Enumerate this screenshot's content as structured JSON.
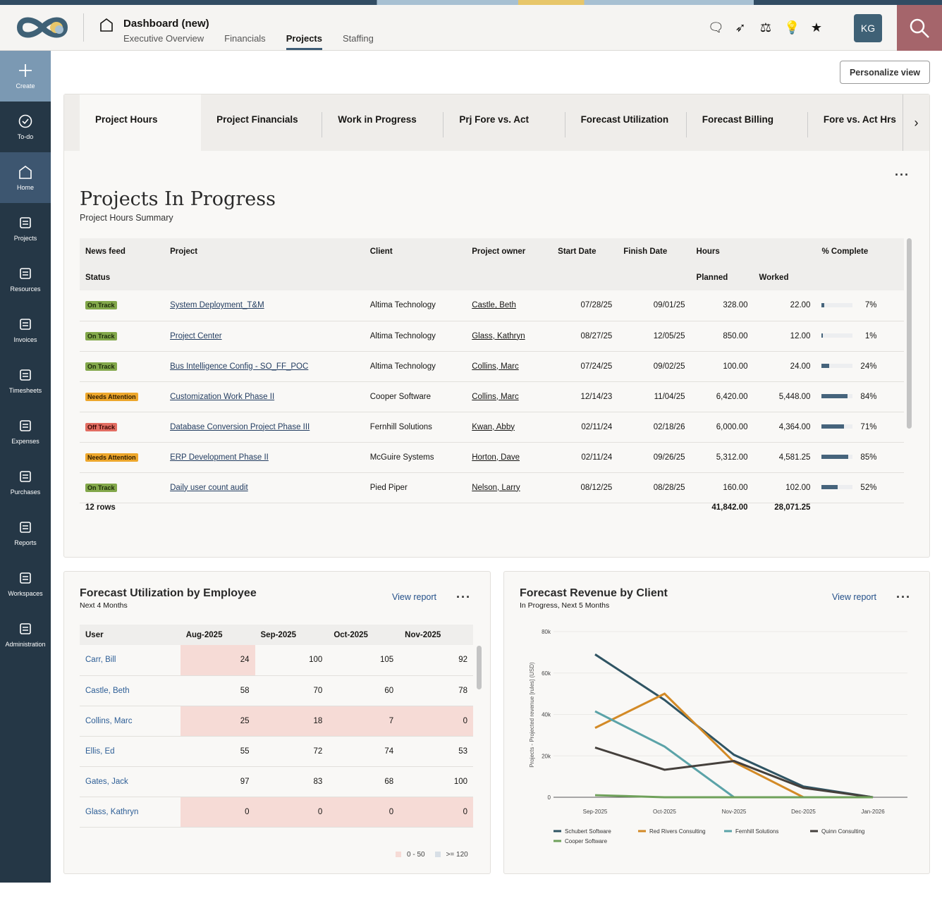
{
  "header": {
    "title": "Dashboard (new)",
    "tabs": [
      "Executive Overview",
      "Financials",
      "Projects",
      "Staffing"
    ],
    "active_tab": "Projects",
    "avatar": "KG",
    "icons": [
      "chat-icon",
      "rocket-icon",
      "scale-icon",
      "lightbulb-icon",
      "star-icon"
    ]
  },
  "sidebar": {
    "items": [
      "Create",
      "To-do",
      "Home",
      "Projects",
      "Resources",
      "Invoices",
      "Timesheets",
      "Expenses",
      "Purchases",
      "Reports",
      "Workspaces",
      "Administration"
    ]
  },
  "personalize_label": "Personalize view",
  "tabs": [
    "Project Hours",
    "Project Financials",
    "Work in Progress",
    "Prj Fore vs. Act",
    "Forecast Utilization",
    "Forecast Billing",
    "Fore vs. Act Hrs"
  ],
  "main": {
    "title": "Projects In Progress",
    "subtitle": "Project Hours Summary",
    "headers": {
      "news": "News feed",
      "status": "Status",
      "project": "Project",
      "client": "Client",
      "owner": "Project owner",
      "start": "Start Date",
      "finish": "Finish Date",
      "hours": "Hours",
      "planned": "Planned",
      "worked": "Worked",
      "pct": "% Complete"
    },
    "rows": [
      {
        "status": "On Track",
        "project": "System Deployment_T&M",
        "client": "Altima Technology",
        "owner": "Castle, Beth",
        "start": "07/28/25",
        "finish": "09/01/25",
        "planned": "328.00",
        "worked": "22.00",
        "pct": 7
      },
      {
        "status": "On Track",
        "project": "Project Center",
        "client": "Altima Technology",
        "owner": "Glass, Kathryn",
        "start": "08/27/25",
        "finish": "12/05/25",
        "planned": "850.00",
        "worked": "12.00",
        "pct": 1
      },
      {
        "status": "On Track",
        "project": "Bus Intelligence Config - SO_FF_POC",
        "client": "Altima Technology",
        "owner": "Collins, Marc",
        "start": "07/24/25",
        "finish": "09/02/25",
        "planned": "100.00",
        "worked": "24.00",
        "pct": 24
      },
      {
        "status": "Needs Attention",
        "project": "Customization Work Phase II",
        "client": "Cooper Software",
        "owner": "Collins, Marc",
        "start": "12/14/23",
        "finish": "11/04/25",
        "planned": "6,420.00",
        "worked": "5,448.00",
        "pct": 84
      },
      {
        "status": "Off Track",
        "project": "Database Conversion Project Phase III",
        "client": "Fernhill Solutions",
        "owner": "Kwan, Abby",
        "start": "02/11/24",
        "finish": "02/18/26",
        "planned": "6,000.00",
        "worked": "4,364.00",
        "pct": 71
      },
      {
        "status": "Needs Attention",
        "project": "ERP Development Phase II",
        "client": "McGuire Systems",
        "owner": "Horton, Dave",
        "start": "02/11/24",
        "finish": "09/26/25",
        "planned": "5,312.00",
        "worked": "4,581.25",
        "pct": 85
      },
      {
        "status": "On Track",
        "project": "Daily user count audit",
        "client": "Pied Piper",
        "owner": "Nelson, Larry",
        "start": "08/12/25",
        "finish": "08/28/25",
        "planned": "160.00",
        "worked": "102.00",
        "pct": 52
      }
    ],
    "row_count": "12 rows",
    "total_planned": "41,842.00",
    "total_worked": "28,071.25"
  },
  "util": {
    "title": "Forecast Utilization by Employee",
    "subtitle": "Next 4 Months",
    "view_report": "View report",
    "columns": [
      "User",
      "Aug-2025",
      "Sep-2025",
      "Oct-2025",
      "Nov-2025"
    ],
    "rows": [
      [
        "Carr, Bill",
        24,
        100,
        105,
        92
      ],
      [
        "Castle, Beth",
        58,
        70,
        60,
        78
      ],
      [
        "Collins, Marc",
        25,
        18,
        7,
        0
      ],
      [
        "Ellis, Ed",
        55,
        72,
        74,
        53
      ],
      [
        "Gates, Jack",
        97,
        83,
        68,
        100
      ],
      [
        "Glass, Kathryn",
        0,
        0,
        0,
        0
      ]
    ],
    "legend": [
      "0 - 50",
      ">= 120"
    ],
    "colors": {
      "low": "#f6dbd6",
      "high": "#d8dfe6"
    }
  },
  "revenue": {
    "title": "Forecast Revenue by Client",
    "subtitle": "In Progress, Next 5 Months",
    "view_report": "View report"
  },
  "chart_data": {
    "type": "line",
    "ylabel": "Projects - Projected revenue [rules] (USD)",
    "ylim": [
      0,
      80000
    ],
    "yticks": [
      "0",
      "20k",
      "40k",
      "60k",
      "80k"
    ],
    "categories": [
      "Sep-2025",
      "Oct-2025",
      "Nov-2025",
      "Dec-2025",
      "Jan-2026"
    ],
    "series": [
      {
        "name": "Schubert Software",
        "color": "#2f5463",
        "values": [
          69000,
          47000,
          20500,
          5200,
          0
        ]
      },
      {
        "name": "Red Rivers Consulting",
        "color": "#d38a26",
        "values": [
          33500,
          50000,
          17000,
          0,
          null
        ]
      },
      {
        "name": "Fernhill Solutions",
        "color": "#5ba3a8",
        "values": [
          41500,
          24500,
          0,
          null,
          null
        ]
      },
      {
        "name": "Quinn Consulting",
        "color": "#45403c",
        "values": [
          24000,
          13300,
          17500,
          4500,
          0
        ]
      },
      {
        "name": "Cooper Software",
        "color": "#6fa15a",
        "values": [
          1000,
          0,
          0,
          0,
          0
        ]
      }
    ],
    "legend_position": "bottom"
  }
}
